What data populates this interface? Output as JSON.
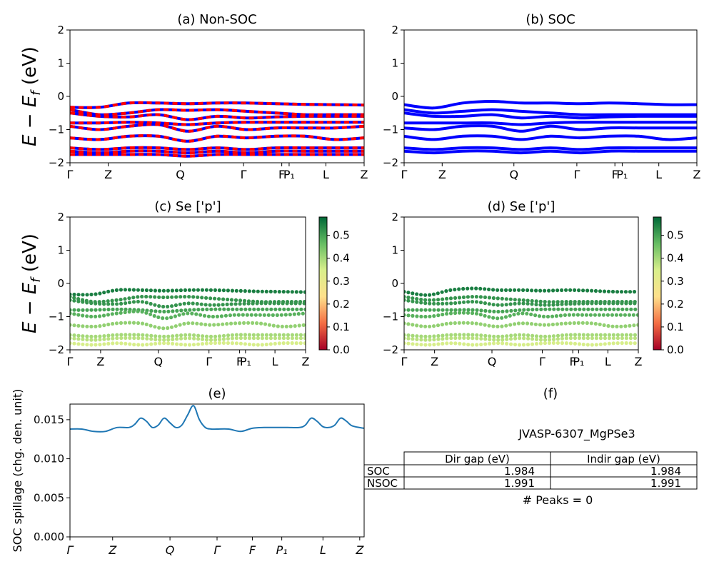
{
  "ylabel_text": "E − E_f (eV)",
  "panels": {
    "a": {
      "title": "(a) Non-SOC"
    },
    "b": {
      "title": "(b) SOC"
    },
    "c": {
      "title": "(c)  Se ['p']"
    },
    "d": {
      "title": "(d) Se ['p']"
    },
    "e": {
      "title": "(e)",
      "ylabel": "SOC spillage (chg. den. unit)"
    },
    "f": {
      "title": "(f)"
    }
  },
  "band_axes": {
    "ylim": [
      -2,
      2
    ],
    "yticks": [
      "2",
      "1",
      "0",
      "−1",
      "−2"
    ],
    "kpoint_labels_ab": [
      "Γ",
      "Z",
      "Q",
      "Γ",
      "F",
      "P₁",
      "L",
      "Z"
    ],
    "kpoint_labels_cd": [
      "Γ",
      "Z",
      "Q",
      "Γ",
      "F",
      "P₁",
      "L",
      "Z"
    ]
  },
  "colorbar": {
    "ticks": [
      "0.0",
      "0.1",
      "0.2",
      "0.3",
      "0.4",
      "0.5"
    ],
    "range": [
      0.0,
      0.58
    ],
    "colors": [
      "#a50026",
      "#f46d43",
      "#fee08b",
      "#d9ef8b",
      "#66bd63",
      "#006837"
    ]
  },
  "colors": {
    "nonsoc_up": "#0000ff",
    "nonsoc_down": "#ff0000",
    "soc": "#0000ff",
    "spillage": "#1f77b4"
  },
  "chart_data": [
    {
      "type": "line",
      "panel": "a",
      "ylim": [
        -2,
        2
      ],
      "x_ticks": [
        "Γ",
        "Z",
        "Q",
        "Γ",
        "F",
        "P₁",
        "L",
        "Z"
      ],
      "series": [
        {
          "values": [
            -0.33,
            -0.33,
            -0.2,
            -0.2,
            -0.22,
            -0.2,
            -0.2,
            -0.22,
            -0.24,
            -0.25,
            -0.26
          ]
        },
        {
          "values": [
            -0.4,
            -0.55,
            -0.5,
            -0.4,
            -0.42,
            -0.4,
            -0.45,
            -0.5,
            -0.55,
            -0.55,
            -0.55
          ]
        },
        {
          "values": [
            -0.5,
            -0.6,
            -0.62,
            -0.55,
            -0.7,
            -0.6,
            -0.65,
            -0.62,
            -0.6,
            -0.6,
            -0.6
          ]
        },
        {
          "values": [
            -0.8,
            -0.8,
            -0.78,
            -0.8,
            -0.85,
            -0.8,
            -0.78,
            -0.78,
            -0.78,
            -0.78,
            -0.78
          ]
        },
        {
          "values": [
            -0.9,
            -1.0,
            -0.9,
            -0.85,
            -1.05,
            -0.9,
            -1.0,
            -0.95,
            -0.95,
            -0.95,
            -0.9
          ]
        },
        {
          "values": [
            -1.25,
            -1.3,
            -1.2,
            -1.2,
            -1.35,
            -1.2,
            -1.25,
            -1.2,
            -1.2,
            -1.3,
            -1.25
          ]
        },
        {
          "values": [
            -1.55,
            -1.6,
            -1.55,
            -1.55,
            -1.6,
            -1.55,
            -1.6,
            -1.55,
            -1.55,
            -1.55,
            -1.55
          ]
        },
        {
          "values": [
            -1.65,
            -1.7,
            -1.65,
            -1.65,
            -1.7,
            -1.65,
            -1.7,
            -1.65,
            -1.65,
            -1.65,
            -1.65
          ]
        },
        {
          "values": [
            -1.75,
            -1.75,
            -1.75,
            -1.75,
            -1.8,
            -1.75,
            -1.75,
            -1.75,
            -1.75,
            -1.75,
            -1.75
          ]
        }
      ]
    },
    {
      "type": "line",
      "panel": "b",
      "ylim": [
        -2,
        2
      ],
      "x_ticks": [
        "Γ",
        "Z",
        "Q",
        "Γ",
        "F",
        "P₁",
        "L",
        "Z"
      ],
      "series": [
        {
          "values": [
            -0.25,
            -0.35,
            -0.2,
            -0.15,
            -0.2,
            -0.2,
            -0.22,
            -0.2,
            -0.22,
            -0.25,
            -0.25
          ]
        },
        {
          "values": [
            -0.4,
            -0.5,
            -0.45,
            -0.4,
            -0.45,
            -0.5,
            -0.55,
            -0.55,
            -0.55,
            -0.55,
            -0.55
          ]
        },
        {
          "values": [
            -0.5,
            -0.6,
            -0.6,
            -0.55,
            -0.65,
            -0.6,
            -0.65,
            -0.62,
            -0.6,
            -0.6,
            -0.6
          ]
        },
        {
          "values": [
            -0.8,
            -0.8,
            -0.8,
            -0.8,
            -0.85,
            -0.8,
            -0.78,
            -0.78,
            -0.78,
            -0.78,
            -0.78
          ]
        },
        {
          "values": [
            -0.95,
            -1.0,
            -0.9,
            -0.9,
            -1.05,
            -0.9,
            -1.0,
            -0.95,
            -0.95,
            -0.95,
            -0.95
          ]
        },
        {
          "values": [
            -1.2,
            -1.3,
            -1.2,
            -1.2,
            -1.3,
            -1.2,
            -1.25,
            -1.2,
            -1.2,
            -1.3,
            -1.25
          ]
        },
        {
          "values": [
            -1.55,
            -1.6,
            -1.55,
            -1.55,
            -1.6,
            -1.55,
            -1.6,
            -1.55,
            -1.55,
            -1.55,
            -1.55
          ]
        },
        {
          "values": [
            -1.65,
            -1.7,
            -1.65,
            -1.65,
            -1.7,
            -1.65,
            -1.7,
            -1.65,
            -1.65,
            -1.65,
            -1.65
          ]
        }
      ]
    },
    {
      "type": "scatter",
      "panel": "c",
      "ylim": [
        -2,
        2
      ],
      "x_ticks": [
        "Γ",
        "Z",
        "Q",
        "Γ",
        "F",
        "P₁",
        "L",
        "Z"
      ],
      "series": [
        {
          "values": [
            -0.33,
            -0.33,
            -0.2,
            -0.2,
            -0.22,
            -0.2,
            -0.2,
            -0.22,
            -0.24,
            -0.25,
            -0.26
          ],
          "weight": 0.55
        },
        {
          "values": [
            -0.4,
            -0.55,
            -0.5,
            -0.4,
            -0.42,
            -0.4,
            -0.45,
            -0.5,
            -0.55,
            -0.55,
            -0.55
          ],
          "weight": 0.52
        },
        {
          "values": [
            -0.5,
            -0.6,
            -0.62,
            -0.55,
            -0.7,
            -0.6,
            -0.65,
            -0.62,
            -0.6,
            -0.6,
            -0.6
          ],
          "weight": 0.52
        },
        {
          "values": [
            -0.8,
            -0.8,
            -0.78,
            -0.8,
            -0.85,
            -0.8,
            -0.78,
            -0.78,
            -0.78,
            -0.78,
            -0.78
          ],
          "weight": 0.5
        },
        {
          "values": [
            -0.9,
            -1.0,
            -0.9,
            -0.85,
            -1.05,
            -0.9,
            -1.0,
            -0.95,
            -0.95,
            -0.95,
            -0.9
          ],
          "weight": 0.48
        },
        {
          "values": [
            -1.25,
            -1.3,
            -1.2,
            -1.2,
            -1.35,
            -1.2,
            -1.25,
            -1.2,
            -1.2,
            -1.3,
            -1.25
          ],
          "weight": 0.42
        },
        {
          "values": [
            -1.55,
            -1.6,
            -1.55,
            -1.55,
            -1.6,
            -1.55,
            -1.6,
            -1.55,
            -1.55,
            -1.55,
            -1.55
          ],
          "weight": 0.4
        },
        {
          "values": [
            -1.65,
            -1.7,
            -1.65,
            -1.65,
            -1.7,
            -1.65,
            -1.7,
            -1.65,
            -1.65,
            -1.65,
            -1.65
          ],
          "weight": 0.38
        },
        {
          "values": [
            -1.8,
            -1.85,
            -1.8,
            -1.85,
            -1.8,
            -1.85,
            -1.8,
            -1.8,
            -1.85,
            -1.8,
            -1.8
          ],
          "weight": 0.35
        }
      ]
    },
    {
      "type": "scatter",
      "panel": "d",
      "ylim": [
        -2,
        2
      ],
      "x_ticks": [
        "Γ",
        "Z",
        "Q",
        "Γ",
        "F",
        "P₁",
        "L",
        "Z"
      ],
      "series": [
        {
          "values": [
            -0.25,
            -0.35,
            -0.2,
            -0.15,
            -0.2,
            -0.2,
            -0.22,
            -0.2,
            -0.22,
            -0.25,
            -0.25
          ],
          "weight": 0.55
        },
        {
          "values": [
            -0.4,
            -0.5,
            -0.45,
            -0.4,
            -0.45,
            -0.5,
            -0.55,
            -0.55,
            -0.55,
            -0.55,
            -0.55
          ],
          "weight": 0.52
        },
        {
          "values": [
            -0.5,
            -0.6,
            -0.6,
            -0.55,
            -0.65,
            -0.6,
            -0.65,
            -0.62,
            -0.6,
            -0.6,
            -0.6
          ],
          "weight": 0.52
        },
        {
          "values": [
            -0.8,
            -0.8,
            -0.8,
            -0.8,
            -0.85,
            -0.8,
            -0.78,
            -0.78,
            -0.78,
            -0.78,
            -0.78
          ],
          "weight": 0.5
        },
        {
          "values": [
            -0.95,
            -1.0,
            -0.9,
            -0.9,
            -1.05,
            -0.9,
            -1.0,
            -0.95,
            -0.95,
            -0.95,
            -0.95
          ],
          "weight": 0.48
        },
        {
          "values": [
            -1.2,
            -1.3,
            -1.2,
            -1.2,
            -1.3,
            -1.2,
            -1.25,
            -1.2,
            -1.2,
            -1.3,
            -1.25
          ],
          "weight": 0.42
        },
        {
          "values": [
            -1.55,
            -1.6,
            -1.55,
            -1.55,
            -1.6,
            -1.55,
            -1.6,
            -1.55,
            -1.55,
            -1.55,
            -1.55
          ],
          "weight": 0.4
        },
        {
          "values": [
            -1.65,
            -1.7,
            -1.65,
            -1.65,
            -1.7,
            -1.65,
            -1.7,
            -1.65,
            -1.65,
            -1.65,
            -1.65
          ],
          "weight": 0.38
        },
        {
          "values": [
            -1.8,
            -1.85,
            -1.8,
            -1.85,
            -1.8,
            -1.85,
            -1.8,
            -1.8,
            -1.85,
            -1.8,
            -1.8
          ],
          "weight": 0.35
        }
      ]
    },
    {
      "type": "line",
      "panel": "e",
      "ylabel": "SOC spillage (chg. den. unit)",
      "ylim": [
        0,
        0.017
      ],
      "yticks": [
        "0.000",
        "0.005",
        "0.010",
        "0.015"
      ],
      "x_ticks": [
        "Γ",
        "Z",
        "Q",
        "Γ",
        "F",
        "P₁",
        "L",
        "Z"
      ],
      "x": [
        0,
        0.04,
        0.08,
        0.12,
        0.16,
        0.2,
        0.22,
        0.24,
        0.26,
        0.28,
        0.3,
        0.32,
        0.34,
        0.36,
        0.38,
        0.4,
        0.42,
        0.44,
        0.46,
        0.48,
        0.5,
        0.54,
        0.58,
        0.62,
        0.66,
        0.7,
        0.74,
        0.78,
        0.8,
        0.82,
        0.84,
        0.86,
        0.88,
        0.9,
        0.92,
        0.94,
        0.96,
        1.0
      ],
      "values": [
        0.0138,
        0.0138,
        0.0135,
        0.0135,
        0.014,
        0.014,
        0.0144,
        0.0152,
        0.0148,
        0.014,
        0.0143,
        0.0152,
        0.0146,
        0.014,
        0.0143,
        0.0156,
        0.0168,
        0.015,
        0.014,
        0.0138,
        0.0138,
        0.0138,
        0.0135,
        0.0139,
        0.014,
        0.014,
        0.014,
        0.014,
        0.0143,
        0.0152,
        0.0148,
        0.0141,
        0.014,
        0.0143,
        0.0152,
        0.0148,
        0.0142,
        0.0139
      ]
    },
    {
      "type": "table",
      "panel": "f",
      "title": "JVASP-6307_MgPSe3",
      "columns": [
        "Dir gap (eV)",
        "Indir gap (eV)"
      ],
      "rows": [
        {
          "label": "SOC",
          "values": [
            "1.984",
            "1.984"
          ]
        },
        {
          "label": "NSOC",
          "values": [
            "1.991",
            "1.991"
          ]
        }
      ],
      "footer": "# Peaks = 0"
    }
  ]
}
